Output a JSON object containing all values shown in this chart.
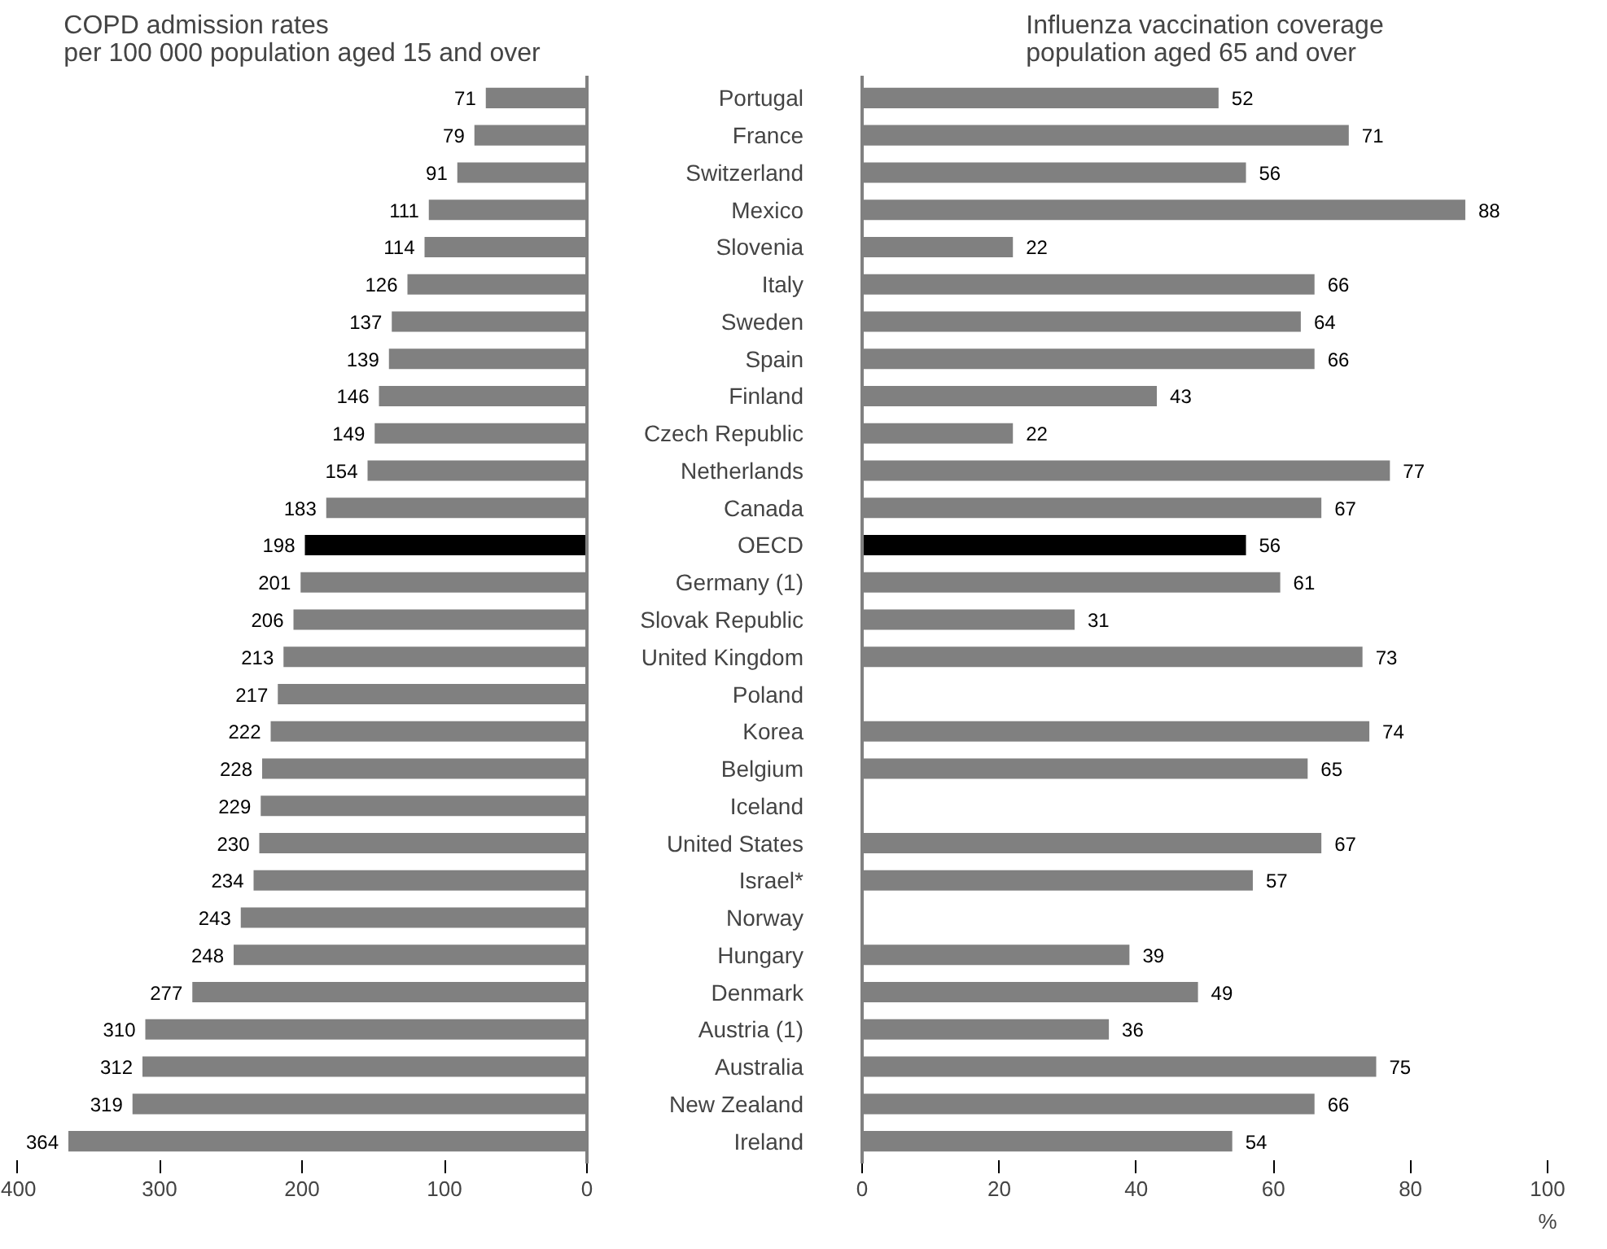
{
  "chart_data": [
    {
      "type": "bar",
      "orientation": "horizontal",
      "title": "COPD admission rates\nper 100 000 population aged 15 and over",
      "categories": [
        null,
        null,
        null,
        null,
        null,
        null,
        null,
        null,
        null,
        null,
        null,
        null,
        null,
        null,
        null,
        null,
        null,
        null,
        null,
        null,
        null,
        null,
        null,
        null,
        null,
        null,
        null,
        null,
        null
      ],
      "values": [
        71,
        79,
        91,
        111,
        114,
        126,
        137,
        139,
        146,
        149,
        154,
        183,
        198,
        201,
        206,
        213,
        217,
        222,
        228,
        229,
        230,
        234,
        243,
        248,
        277,
        310,
        312,
        319,
        364
      ],
      "colors": [
        "#808080",
        "#808080",
        "#808080",
        "#808080",
        "#808080",
        "#808080",
        "#808080",
        "#808080",
        "#808080",
        "#808080",
        "#808080",
        "#808080",
        "#000000",
        "#808080",
        "#808080",
        "#808080",
        "#808080",
        "#808080",
        "#808080",
        "#808080",
        "#808080",
        "#808080",
        "#808080",
        "#808080",
        "#808080",
        "#808080",
        "#808080",
        "#808080",
        "#808080"
      ],
      "xlim": [
        400,
        0
      ],
      "xticks": [
        0,
        100,
        200,
        300,
        400
      ],
      "data_labels": true,
      "tick_labels": "x",
      "grid": false
    },
    {
      "type": "bar",
      "orientation": "horizontal",
      "title": "Influenza vaccination coverage\npopulation aged 65 and over",
      "xlabel": "%",
      "categories": [
        "Portugal",
        "France",
        "Switzerland",
        "Mexico",
        "Slovenia",
        "Italy",
        "Sweden",
        "Spain",
        "Finland",
        "Czech Republic",
        "Netherlands",
        "Canada",
        "OECD",
        "Germany (1)",
        "Slovak Republic",
        "United Kingdom",
        "Poland",
        "Korea",
        "Belgium",
        "Iceland",
        "United States",
        "Israel*",
        "Norway",
        "Hungary",
        "Denmark",
        "Austria (1)",
        "Australia",
        "New Zealand",
        "Ireland"
      ],
      "values": [
        52,
        71,
        56,
        88,
        22,
        66,
        64,
        66,
        43,
        22,
        77,
        67,
        56,
        61,
        31,
        73,
        null,
        74,
        65,
        null,
        67,
        57,
        null,
        39,
        49,
        36,
        75,
        66,
        54
      ],
      "colors": [
        "#808080",
        "#808080",
        "#808080",
        "#808080",
        "#808080",
        "#808080",
        "#808080",
        "#808080",
        "#808080",
        "#808080",
        "#808080",
        "#808080",
        "#000000",
        "#808080",
        "#808080",
        "#808080",
        "#808080",
        "#808080",
        "#808080",
        "#808080",
        "#808080",
        "#808080",
        "#808080",
        "#808080",
        "#808080",
        "#808080",
        "#808080",
        "#808080",
        "#808080"
      ],
      "xlim": [
        0,
        100
      ],
      "xticks": [
        0,
        20,
        40,
        60,
        80,
        100
      ],
      "data_labels": true,
      "grid": false
    }
  ]
}
